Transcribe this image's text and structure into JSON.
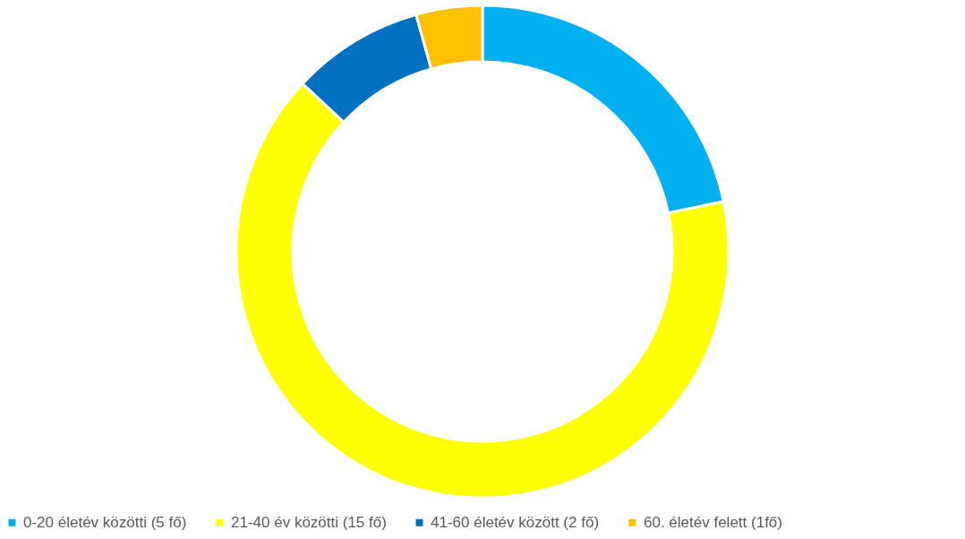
{
  "chart_data": {
    "type": "donut",
    "categories": [
      "0-20 életév közötti (5 fő)",
      "21-40 év közötti (15 fő)",
      "41-60 életév között (2 fő)",
      "60. életév felett (1fő)"
    ],
    "values": [
      21.74,
      65.21,
      8.7,
      4.35
    ],
    "colors": [
      "#00b0f0",
      "#ffff00",
      "#0070c0",
      "#ffc000"
    ],
    "legend": "bottom"
  }
}
